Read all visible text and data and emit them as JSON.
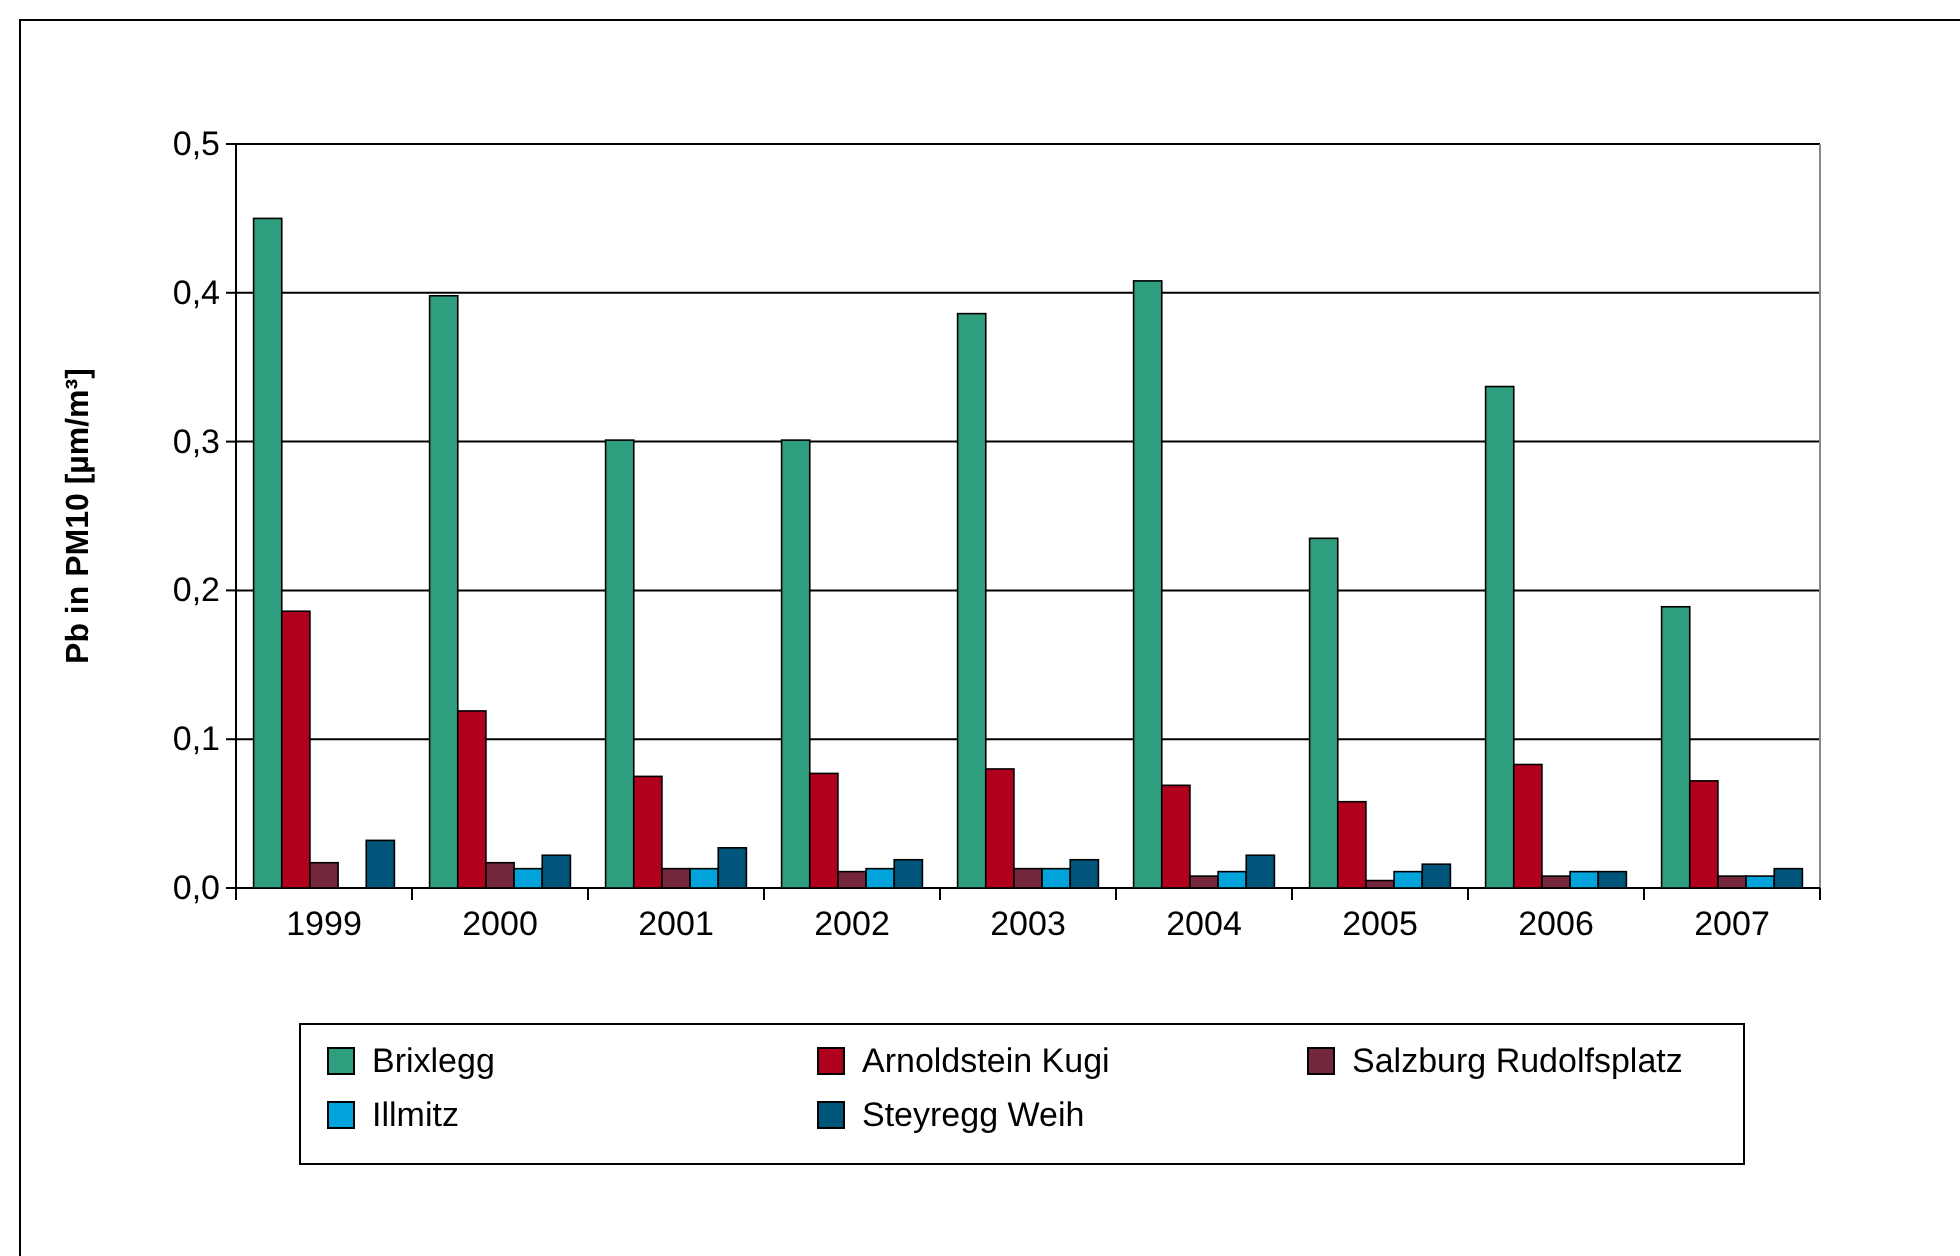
{
  "chart_data": {
    "type": "bar",
    "ylabel": "Pb in PM10 [µm/m³]",
    "categories": [
      "1999",
      "2000",
      "2001",
      "2002",
      "2003",
      "2004",
      "2005",
      "2006",
      "2007"
    ],
    "series": [
      {
        "name": "Brixlegg",
        "color": "#2e9e7e",
        "values": [
          0.45,
          0.398,
          0.301,
          0.301,
          0.386,
          0.408,
          0.235,
          0.337,
          0.189
        ]
      },
      {
        "name": "Arnoldstein Kugi",
        "color": "#b0001e",
        "values": [
          0.186,
          0.119,
          0.075,
          0.077,
          0.08,
          0.069,
          0.058,
          0.083,
          0.072
        ]
      },
      {
        "name": "Salzburg Rudolfsplatz",
        "color": "#74263a",
        "values": [
          0.017,
          0.017,
          0.013,
          0.011,
          0.013,
          0.008,
          0.005,
          0.008,
          0.008
        ]
      },
      {
        "name": "Illmitz",
        "color": "#00a3dc",
        "values": [
          null,
          0.013,
          0.013,
          0.013,
          0.013,
          0.011,
          0.011,
          0.011,
          0.008
        ]
      },
      {
        "name": "Steyregg Weih",
        "color": "#00567a",
        "values": [
          0.032,
          0.022,
          0.027,
          0.019,
          0.019,
          0.022,
          0.016,
          0.011,
          0.013
        ]
      }
    ],
    "ylim": [
      0,
      0.5
    ],
    "yticks": [
      {
        "value": 0,
        "label": "0,0"
      },
      {
        "value": 0.1,
        "label": "0,1"
      },
      {
        "value": 0.2,
        "label": "0,2"
      },
      {
        "value": 0.3,
        "label": "0,3"
      },
      {
        "value": 0.4,
        "label": "0,4"
      },
      {
        "value": 0.5,
        "label": "0,5"
      }
    ],
    "grid": "y",
    "legend": "bottom"
  }
}
